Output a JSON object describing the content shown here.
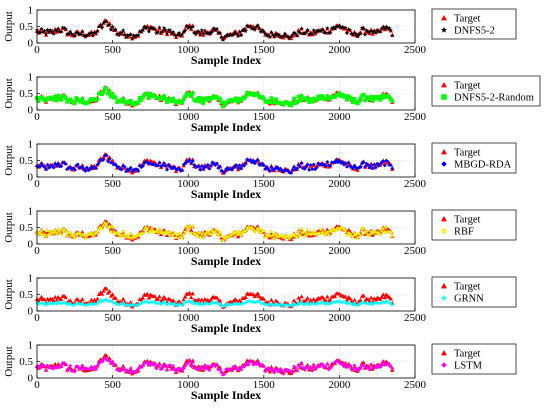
{
  "colors": {
    "target": "#ff0000",
    "dnfs": "#000000",
    "random": "#00ff00",
    "mbgd": "#0000ff",
    "rbf": "#ffff00",
    "grnn": "#00ffff",
    "lstm": "#ff00ff"
  },
  "chart_data": [
    {
      "type": "scatter",
      "xlabel": "Sample Index",
      "ylabel": "Output",
      "xlim": [
        0,
        2500
      ],
      "ylim": [
        0,
        1
      ],
      "xticks": [
        0,
        500,
        1000,
        1500,
        2000,
        2500
      ],
      "yticks": [
        0,
        0.5,
        1
      ],
      "xtick_labels": [
        "0",
        "500",
        "1000",
        "1500",
        "2000",
        "2500"
      ],
      "ytick_labels": [
        "0",
        "0.5",
        "1"
      ],
      "legend": [
        "Target",
        "DNFS5-2"
      ],
      "legend_position": "right",
      "series": [
        {
          "name": "Target",
          "marker": "triangle",
          "color": "#ff0000"
        },
        {
          "name": "DNFS5-2",
          "marker": "star",
          "color": "#000000"
        }
      ],
      "x_range": [
        0,
        2360
      ],
      "typical_y_range": [
        0.1,
        0.7
      ]
    },
    {
      "type": "scatter",
      "xlabel": "Sample Index",
      "ylabel": "Output",
      "xlim": [
        0,
        2500
      ],
      "ylim": [
        0,
        1
      ],
      "xticks": [
        0,
        500,
        1000,
        1500,
        2000,
        2500
      ],
      "yticks": [
        0,
        0.5,
        1
      ],
      "xtick_labels": [
        "0",
        "500",
        "1000",
        "1500",
        "2000",
        "2500"
      ],
      "ytick_labels": [
        "0",
        "0.5",
        "1"
      ],
      "legend": [
        "Target",
        "DNFS5-2-Random"
      ],
      "legend_position": "right",
      "series": [
        {
          "name": "Target",
          "marker": "triangle",
          "color": "#ff0000"
        },
        {
          "name": "DNFS5-2-Random",
          "marker": "square",
          "color": "#00ff00"
        }
      ]
    },
    {
      "type": "scatter",
      "xlabel": "Sample Index",
      "ylabel": "Output",
      "xlim": [
        0,
        2500
      ],
      "ylim": [
        0,
        1
      ],
      "xticks": [
        0,
        500,
        1000,
        1500,
        2000,
        2500
      ],
      "yticks": [
        0,
        0.5,
        1
      ],
      "xtick_labels": [
        "0",
        "500",
        "1000",
        "1500",
        "2000",
        "2500"
      ],
      "ytick_labels": [
        "0",
        "0.5",
        "1"
      ],
      "legend": [
        "Target",
        "MBGD-RDA"
      ],
      "legend_position": "right",
      "series": [
        {
          "name": "Target",
          "marker": "triangle",
          "color": "#ff0000"
        },
        {
          "name": "MBGD-RDA",
          "marker": "diamond",
          "color": "#0000ff"
        }
      ]
    },
    {
      "type": "scatter",
      "xlabel": "Sample Index",
      "ylabel": "Output",
      "xlim": [
        0,
        2500
      ],
      "ylim": [
        0,
        1
      ],
      "xticks": [
        0,
        500,
        1000,
        1500,
        2000,
        2500
      ],
      "yticks": [
        0,
        0.5,
        1
      ],
      "xtick_labels": [
        "0",
        "500",
        "1000",
        "1500",
        "2000",
        "2500"
      ],
      "ytick_labels": [
        "0",
        "0.5",
        "1"
      ],
      "legend": [
        "Target",
        "RBF"
      ],
      "legend_position": "right",
      "series": [
        {
          "name": "Target",
          "marker": "triangle",
          "color": "#ff0000"
        },
        {
          "name": "RBF",
          "marker": "pentagram",
          "color": "#ffff00"
        }
      ]
    },
    {
      "type": "scatter",
      "xlabel": "Sample Index",
      "ylabel": "Output",
      "xlim": [
        0,
        2500
      ],
      "ylim": [
        0,
        1
      ],
      "xticks": [
        0,
        500,
        1000,
        1500,
        2000,
        2500
      ],
      "yticks": [
        0,
        0.5,
        1
      ],
      "xtick_labels": [
        "0",
        "500",
        "1000",
        "1500",
        "2000",
        "2500"
      ],
      "ytick_labels": [
        "0",
        "0.5",
        "1"
      ],
      "legend": [
        "Target",
        "GRNN"
      ],
      "legend_position": "right",
      "series": [
        {
          "name": "Target",
          "marker": "triangle",
          "color": "#ff0000"
        },
        {
          "name": "GRNN",
          "marker": "star",
          "color": "#00ffff"
        }
      ]
    },
    {
      "type": "scatter",
      "xlabel": "Sample Index",
      "ylabel": "Output",
      "xlim": [
        0,
        2500
      ],
      "ylim": [
        0,
        1
      ],
      "xticks": [
        0,
        500,
        1000,
        1500,
        2000,
        2500
      ],
      "yticks": [
        0,
        0.5,
        1
      ],
      "xtick_labels": [
        "0",
        "500",
        "1000",
        "1500",
        "2000",
        "2500"
      ],
      "ytick_labels": [
        "0",
        "0.5",
        "1"
      ],
      "legend": [
        "Target",
        "LSTM"
      ],
      "legend_position": "right",
      "series": [
        {
          "name": "Target",
          "marker": "triangle",
          "color": "#ff0000"
        },
        {
          "name": "LSTM",
          "marker": "diamond",
          "color": "#ff00ff"
        }
      ]
    }
  ]
}
